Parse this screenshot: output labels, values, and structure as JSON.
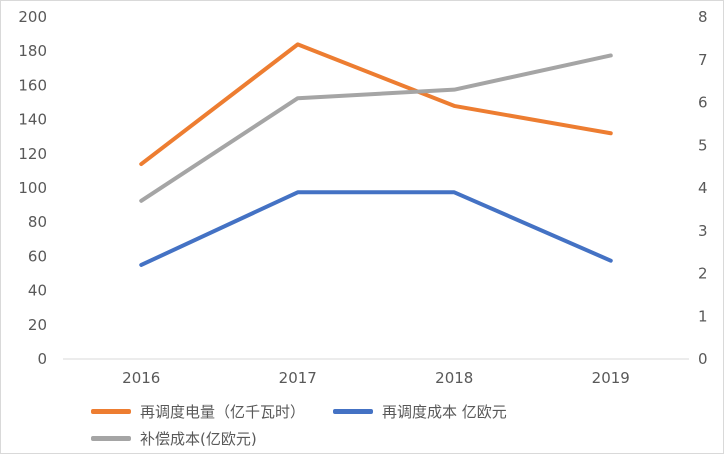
{
  "chart_data": {
    "type": "line",
    "title": "",
    "categories": [
      "2016",
      "2017",
      "2018",
      "2019"
    ],
    "left_axis": {
      "min": 0,
      "max": 200,
      "ticks": [
        0,
        20,
        40,
        60,
        80,
        100,
        120,
        140,
        160,
        180,
        200
      ]
    },
    "right_axis": {
      "min": 0,
      "max": 8,
      "ticks": [
        0,
        1,
        2,
        3,
        4,
        5,
        6,
        7,
        8
      ]
    },
    "series": [
      {
        "name": "再调度电量（亿千瓦时）",
        "axis": "left",
        "color": "#ED7D31",
        "values": [
          114,
          184,
          148,
          132
        ]
      },
      {
        "name": "再调度成本 亿欧元",
        "axis": "right",
        "color": "#4472C4",
        "values": [
          2.2,
          3.9,
          3.9,
          2.3
        ]
      },
      {
        "name": "补偿成本(亿欧元)",
        "axis": "right",
        "color": "#A5A5A5",
        "values": [
          3.7,
          6.1,
          6.3,
          7.1
        ]
      }
    ],
    "grid": false,
    "legend_position": "bottom-left"
  },
  "colors": {
    "axis_line": "#D9D9D9",
    "tick_text": "#595959",
    "background": "#FFFFFF"
  }
}
